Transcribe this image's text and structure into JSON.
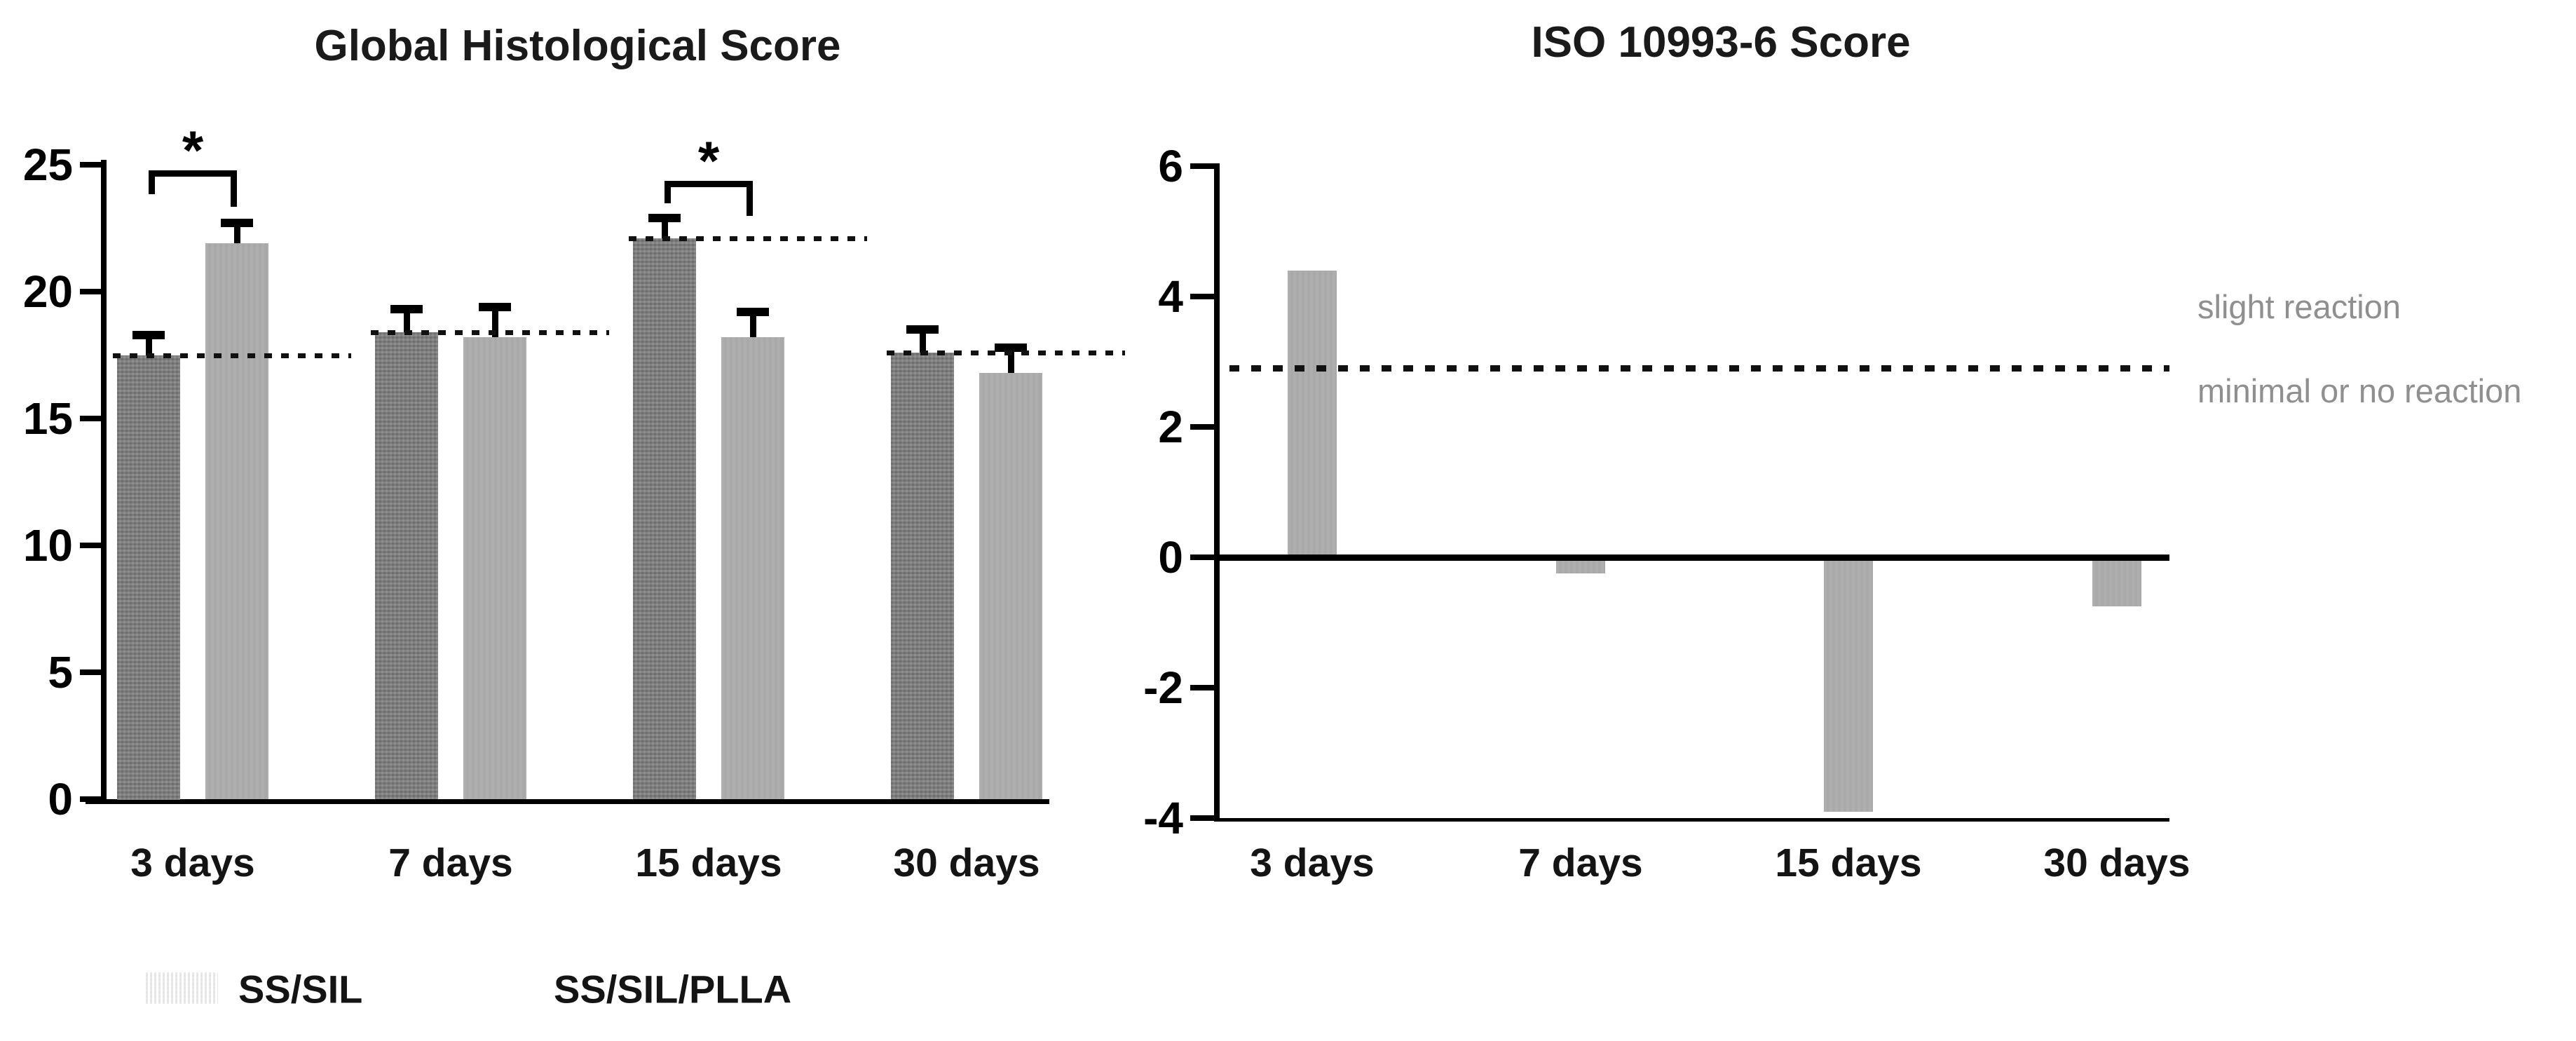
{
  "chart_data": [
    {
      "type": "grouped_bar",
      "title": "Global Histological Score",
      "categories": [
        "3 days",
        "7 days",
        "15 days",
        "30 days"
      ],
      "series": [
        {
          "name": "SS/SIL",
          "values": [
            17.5,
            18.4,
            22.1,
            17.6
          ],
          "errors_plus": [
            0.8,
            0.9,
            0.8,
            0.9
          ]
        },
        {
          "name": "SS/SIL/PLLA",
          "values": [
            21.9,
            18.2,
            18.2,
            16.8
          ],
          "errors_plus": [
            0.8,
            1.2,
            1.0,
            1.0
          ]
        }
      ],
      "ylim": [
        0,
        25
      ],
      "yticks": [
        25,
        20,
        15,
        10,
        5,
        0
      ],
      "xlabel": "",
      "ylabel": "",
      "grid": false,
      "dotted_reference_values": [
        17.5,
        18.4,
        22.1,
        17.6
      ],
      "significance": [
        {
          "group_index": 0,
          "label": "*"
        },
        {
          "group_index": 2,
          "label": "*"
        }
      ],
      "legend_position": "bottom-left"
    },
    {
      "type": "bar",
      "title": "ISO 10993-6 Score",
      "categories": [
        "3 days",
        "7 days",
        "15 days",
        "30 days"
      ],
      "values": [
        4.4,
        -0.25,
        -3.9,
        -0.75
      ],
      "ylim": [
        -4,
        6
      ],
      "yticks": [
        6,
        4,
        2,
        0,
        -2,
        -4
      ],
      "xlabel": "",
      "ylabel": "",
      "grid": false,
      "threshold_line": {
        "value": 2.9,
        "style": "dotted"
      },
      "annotations": [
        {
          "text": "slight reaction",
          "position": "above_threshold"
        },
        {
          "text": "minimal or no reaction",
          "position": "below_threshold"
        }
      ]
    }
  ],
  "legend": {
    "items": [
      {
        "label": "SS/SIL",
        "swatch": "dark-textured"
      },
      {
        "label": "SS/SIL/PLLA",
        "swatch": "light-solid"
      }
    ]
  },
  "colors": {
    "dark_bar": "#7b7b7b",
    "light_bar": "#a9a9a9",
    "axis": "#000000",
    "annotation_text": "#8f8f8f"
  }
}
